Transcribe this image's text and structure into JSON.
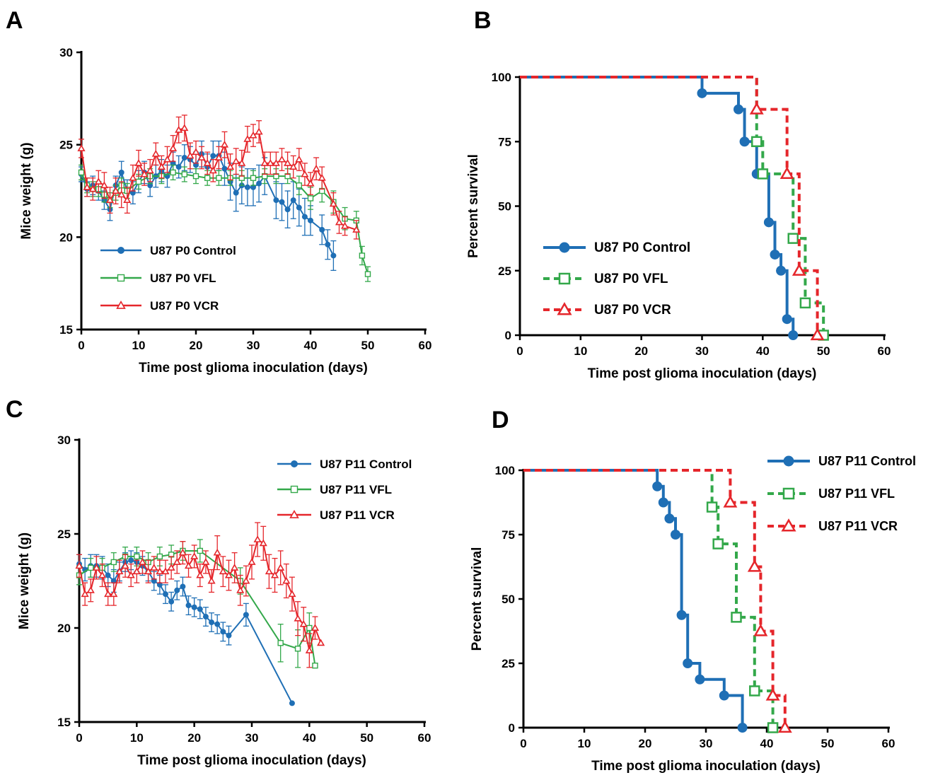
{
  "colors": {
    "control": "#1f6fb5",
    "vfl": "#33a84a",
    "vcr": "#e5262b",
    "axis": "#000000"
  },
  "chart_data": [
    {
      "panel_label": "A",
      "type": "line",
      "xlabel": "Time post glioma inoculation (days)",
      "ylabel": "Mice weight (g)",
      "xlim": [
        0,
        60
      ],
      "ylim": [
        15,
        30
      ],
      "xticks": [
        0,
        10,
        20,
        30,
        40,
        50,
        60
      ],
      "yticks": [
        15,
        20,
        25,
        30
      ],
      "error_bars": true,
      "legend_position": "bottom-left",
      "series": [
        {
          "name": "U87 P0 Control",
          "color_key": "control",
          "marker": "filled-circle",
          "x": [
            0,
            1,
            2,
            3,
            4,
            5,
            6,
            7,
            8,
            9,
            10,
            11,
            12,
            13,
            14,
            15,
            16,
            17,
            18,
            19,
            20,
            21,
            22,
            23,
            24,
            25,
            26,
            27,
            28,
            29,
            30,
            31,
            32,
            34,
            35,
            36,
            37,
            38,
            39,
            40,
            42,
            43,
            44
          ],
          "y": [
            23.4,
            22.6,
            22.8,
            22.5,
            22.0,
            21.5,
            22.8,
            23.5,
            22.5,
            22.4,
            23.0,
            23.5,
            22.8,
            23.3,
            23.6,
            23.3,
            24.0,
            23.8,
            24.3,
            24.2,
            23.9,
            24.5,
            23.8,
            24.4,
            24.4,
            23.7,
            23.0,
            22.4,
            22.8,
            22.7,
            22.7,
            22.9,
            23.3,
            22.0,
            21.9,
            21.5,
            22.0,
            21.6,
            21.1,
            20.9,
            20.4,
            19.6,
            19.0
          ],
          "err": [
            0.4,
            0.4,
            0.5,
            0.5,
            0.5,
            0.6,
            0.5,
            0.6,
            0.6,
            0.6,
            0.6,
            0.6,
            0.6,
            0.6,
            0.6,
            0.6,
            0.6,
            0.6,
            0.7,
            0.7,
            0.7,
            0.7,
            0.7,
            0.8,
            0.8,
            0.9,
            1.0,
            1.0,
            1.0,
            1.0,
            1.0,
            1.0,
            1.0,
            1.0,
            1.0,
            1.0,
            1.0,
            1.0,
            1.0,
            0.8,
            0.8,
            0.8,
            0.8
          ]
        },
        {
          "name": "U87 P0 VFL",
          "color_key": "vfl",
          "marker": "open-square",
          "x": [
            0,
            1,
            2,
            3,
            4,
            5,
            6,
            7,
            8,
            10,
            12,
            14,
            16,
            18,
            20,
            22,
            24,
            26,
            28,
            30,
            32,
            34,
            36,
            38,
            40,
            42,
            44,
            46,
            48,
            49,
            50
          ],
          "y": [
            23.5,
            22.8,
            22.6,
            22.6,
            22.3,
            22.0,
            22.4,
            22.8,
            22.5,
            23.0,
            23.3,
            23.3,
            23.5,
            23.4,
            23.3,
            23.2,
            23.2,
            23.2,
            23.2,
            23.2,
            23.3,
            23.3,
            23.3,
            22.8,
            22.1,
            22.5,
            21.9,
            21.0,
            20.9,
            19.0,
            18.0
          ],
          "err": [
            0.4,
            0.4,
            0.4,
            0.4,
            0.4,
            0.4,
            0.4,
            0.4,
            0.4,
            0.4,
            0.4,
            0.4,
            0.4,
            0.4,
            0.4,
            0.4,
            0.4,
            0.4,
            0.4,
            0.4,
            0.4,
            0.4,
            0.4,
            0.5,
            0.6,
            0.6,
            0.6,
            0.6,
            0.5,
            0.5,
            0.4
          ]
        },
        {
          "name": "U87 P0 VCR",
          "color_key": "vcr",
          "marker": "open-triangle",
          "x": [
            0,
            1,
            2,
            3,
            4,
            5,
            6,
            7,
            8,
            9,
            10,
            11,
            12,
            13,
            14,
            15,
            16,
            17,
            18,
            19,
            20,
            21,
            22,
            23,
            24,
            25,
            26,
            27,
            28,
            29,
            30,
            31,
            32,
            33,
            34,
            35,
            36,
            37,
            38,
            39,
            40,
            41,
            42,
            44,
            45,
            46,
            48
          ],
          "y": [
            24.8,
            22.7,
            22.6,
            23.0,
            22.8,
            22.0,
            22.5,
            22.3,
            22.0,
            23.2,
            24.0,
            23.4,
            23.6,
            24.5,
            23.8,
            24.2,
            24.8,
            25.8,
            25.9,
            24.4,
            24.6,
            24.3,
            24.0,
            23.6,
            24.3,
            25.0,
            23.8,
            24.1,
            24.0,
            25.3,
            25.5,
            25.7,
            24.0,
            24.0,
            24.0,
            24.2,
            24.0,
            23.8,
            24.2,
            23.4,
            22.9,
            23.7,
            23.2,
            21.8,
            20.8,
            20.6,
            20.4
          ],
          "err": [
            0.5,
            0.5,
            0.6,
            0.6,
            0.7,
            0.7,
            0.7,
            0.7,
            0.7,
            0.7,
            0.7,
            0.6,
            0.6,
            0.6,
            0.6,
            0.7,
            0.7,
            0.7,
            0.7,
            0.7,
            0.6,
            0.6,
            0.6,
            0.6,
            0.6,
            0.7,
            0.7,
            0.7,
            0.7,
            0.7,
            0.6,
            0.6,
            0.6,
            0.6,
            0.6,
            0.6,
            0.6,
            0.6,
            0.6,
            0.6,
            0.6,
            0.6,
            0.6,
            0.6,
            0.6,
            0.5,
            0.5
          ]
        }
      ]
    },
    {
      "panel_label": "B",
      "type": "line",
      "subtype": "kaplan-meier",
      "xlabel": "Time post glioma inoculation (days)",
      "ylabel": "Percent survival",
      "xlim": [
        0,
        60
      ],
      "ylim": [
        0,
        100
      ],
      "xticks": [
        0,
        10,
        20,
        30,
        40,
        50,
        60
      ],
      "yticks": [
        0,
        25,
        50,
        75,
        100
      ],
      "legend_position": "bottom-left",
      "series": [
        {
          "name": "U87 P0 Control",
          "color_key": "control",
          "marker": "filled-circle",
          "line_style": "solid",
          "x": [
            0,
            30,
            36,
            37,
            39,
            41,
            42,
            43,
            44,
            45
          ],
          "y": [
            100,
            93.75,
            87.5,
            75,
            62.5,
            43.75,
            31.25,
            25,
            6.25,
            0
          ]
        },
        {
          "name": "U87 P0 VFL",
          "color_key": "vfl",
          "marker": "open-square",
          "line_style": "dashed",
          "x": [
            0,
            39,
            40,
            45,
            47,
            50
          ],
          "y": [
            100,
            75,
            62.5,
            37.5,
            12.5,
            0
          ]
        },
        {
          "name": "U87 P0 VCR",
          "color_key": "vcr",
          "marker": "open-triangle",
          "line_style": "dashed",
          "x": [
            0,
            39,
            44,
            46,
            49
          ],
          "y": [
            100,
            87.5,
            62.5,
            25,
            0
          ]
        }
      ]
    },
    {
      "panel_label": "C",
      "type": "line",
      "xlabel": "Time post glioma inoculation (days)",
      "ylabel": "Mice weight (g)",
      "xlim": [
        0,
        60
      ],
      "ylim": [
        15,
        30
      ],
      "xticks": [
        0,
        10,
        20,
        30,
        40,
        50,
        60
      ],
      "yticks": [
        15,
        20,
        25,
        30
      ],
      "error_bars": true,
      "legend_position": "top-right",
      "series": [
        {
          "name": "U87 P11 Control",
          "color_key": "control",
          "marker": "filled-circle",
          "x": [
            0,
            1,
            2,
            3,
            4,
            5,
            6,
            7,
            8,
            9,
            10,
            11,
            12,
            13,
            14,
            15,
            16,
            17,
            18,
            19,
            20,
            21,
            22,
            23,
            24,
            25,
            26,
            29,
            37
          ],
          "y": [
            23.4,
            23.1,
            23.3,
            23.3,
            23.2,
            22.8,
            22.5,
            23.0,
            23.5,
            23.6,
            23.5,
            23.3,
            23.0,
            22.5,
            22.3,
            21.8,
            21.4,
            22.0,
            22.2,
            21.2,
            21.1,
            21.0,
            20.6,
            20.3,
            20.2,
            19.8,
            19.6,
            20.7,
            16.0
          ],
          "err": [
            0.5,
            0.6,
            0.6,
            0.6,
            0.6,
            0.6,
            0.6,
            0.5,
            0.5,
            0.5,
            0.5,
            0.5,
            0.5,
            0.5,
            0.5,
            0.5,
            0.5,
            0.5,
            0.5,
            0.5,
            0.5,
            0.5,
            0.5,
            0.5,
            0.5,
            0.5,
            0.5,
            0.6,
            0.0
          ]
        },
        {
          "name": "U87 P11 VFL",
          "color_key": "vfl",
          "marker": "open-square",
          "x": [
            0,
            2,
            4,
            6,
            8,
            10,
            12,
            14,
            16,
            18,
            21,
            28,
            35,
            38,
            40,
            41
          ],
          "y": [
            22.8,
            23.2,
            23.2,
            23.5,
            23.8,
            23.8,
            23.5,
            23.8,
            23.9,
            24.1,
            24.1,
            22.5,
            19.2,
            18.9,
            20.0,
            18.0
          ],
          "err": [
            0.5,
            0.5,
            0.5,
            0.5,
            0.5,
            0.5,
            0.5,
            0.5,
            0.5,
            0.5,
            0.6,
            0.7,
            1.0,
            1.0,
            0.8,
            0.0
          ]
        },
        {
          "name": "U87 P11 VCR",
          "color_key": "vcr",
          "marker": "open-triangle",
          "x": [
            0,
            1,
            2,
            3,
            4,
            5,
            6,
            7,
            8,
            9,
            10,
            11,
            12,
            13,
            14,
            15,
            16,
            17,
            18,
            19,
            20,
            21,
            22,
            23,
            24,
            25,
            26,
            27,
            28,
            29,
            30,
            31,
            32,
            33,
            34,
            35,
            36,
            37,
            38,
            39,
            40,
            41,
            42
          ],
          "y": [
            23.3,
            21.8,
            22.0,
            23.2,
            22.8,
            21.8,
            21.8,
            23.0,
            23.3,
            22.8,
            23.0,
            23.5,
            23.0,
            23.2,
            23.0,
            23.0,
            23.2,
            23.5,
            24.0,
            23.3,
            23.8,
            22.8,
            23.5,
            22.5,
            24.0,
            23.0,
            22.8,
            23.2,
            22.0,
            22.5,
            23.5,
            24.7,
            24.5,
            23.0,
            22.8,
            23.2,
            22.5,
            21.8,
            20.5,
            20.2,
            18.8,
            20.0,
            19.2
          ],
          "err": [
            0.6,
            0.6,
            0.6,
            0.6,
            0.6,
            0.6,
            0.6,
            0.6,
            0.6,
            0.6,
            0.6,
            0.6,
            0.6,
            0.6,
            0.6,
            0.6,
            0.6,
            0.6,
            0.6,
            0.6,
            0.6,
            0.6,
            0.6,
            0.6,
            0.9,
            0.8,
            0.8,
            0.8,
            0.8,
            0.8,
            0.9,
            0.9,
            0.9,
            0.9,
            0.9,
            0.9,
            0.9,
            0.9,
            0.9,
            0.9,
            0.9,
            0.6,
            0.0
          ]
        }
      ]
    },
    {
      "panel_label": "D",
      "type": "line",
      "subtype": "kaplan-meier",
      "xlabel": "Time post glioma inoculation (days)",
      "ylabel": "Percent survival",
      "xlim": [
        0,
        60
      ],
      "ylim": [
        0,
        100
      ],
      "xticks": [
        0,
        10,
        20,
        30,
        40,
        50,
        60
      ],
      "yticks": [
        0,
        25,
        50,
        75,
        100
      ],
      "legend_position": "top-right",
      "series": [
        {
          "name": "U87 P11 Control",
          "color_key": "control",
          "marker": "filled-circle",
          "line_style": "solid",
          "x": [
            0,
            22,
            23,
            24,
            25,
            26,
            27,
            29,
            33,
            36
          ],
          "y": [
            100,
            93.75,
            87.5,
            81.25,
            75,
            43.75,
            25,
            18.75,
            12.5,
            0
          ]
        },
        {
          "name": "U87 P11 VFL",
          "color_key": "vfl",
          "marker": "open-square",
          "line_style": "dashed",
          "x": [
            0,
            31,
            32,
            35,
            38,
            41
          ],
          "y": [
            100,
            85.7,
            71.4,
            42.9,
            14.3,
            0
          ]
        },
        {
          "name": "U87 P11 VCR",
          "color_key": "vcr",
          "marker": "open-triangle",
          "line_style": "dashed",
          "x": [
            0,
            34,
            38,
            39,
            41,
            43
          ],
          "y": [
            100,
            87.5,
            62.5,
            37.5,
            12.5,
            0
          ]
        }
      ]
    }
  ]
}
